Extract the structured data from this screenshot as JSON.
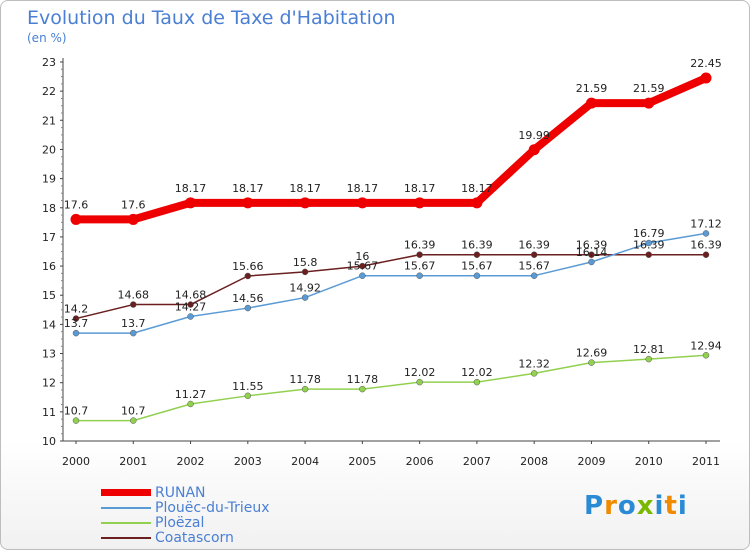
{
  "chart_data": {
    "type": "line",
    "title": "Evolution du Taux de Taxe d'Habitation",
    "unit": "(en %)",
    "x": [
      "2000",
      "2001",
      "2002",
      "2003",
      "2004",
      "2005",
      "2006",
      "2007",
      "2008",
      "2009",
      "2010",
      "2011"
    ],
    "ylim": [
      10,
      23
    ],
    "yticks": [
      "10",
      "11",
      "12",
      "13",
      "14",
      "15",
      "16",
      "17",
      "18",
      "19",
      "20",
      "21",
      "22",
      "23"
    ],
    "grid": false,
    "legend_position": "bottom-left",
    "series": [
      {
        "name": "Coatascorn",
        "color": "#6b1f1f",
        "values": [
          14.2,
          14.68,
          14.68,
          15.66,
          15.8,
          16,
          16.39,
          16.39,
          16.39,
          16.39,
          16.39,
          16.39
        ],
        "labels": [
          "14.2",
          "14.68",
          "14.68",
          "15.66",
          "15.8",
          "16",
          "16.39",
          "16.39",
          "16.39",
          "16.39",
          "16.39",
          "16.39"
        ]
      },
      {
        "name": "Plouëc-du-Trieux",
        "color": "#5b9bd5",
        "values": [
          13.7,
          13.7,
          14.27,
          14.56,
          14.92,
          15.67,
          15.67,
          15.67,
          15.67,
          16.14,
          16.79,
          17.12
        ],
        "labels": [
          "13.7",
          "13.7",
          "14.27",
          "14.56",
          "14.92",
          "15.67",
          "15.67",
          "15.67",
          "15.67",
          "16.14",
          "16.79",
          "17.12"
        ]
      },
      {
        "name": "Ploëzal",
        "color": "#92d050",
        "values": [
          10.7,
          10.7,
          11.27,
          11.55,
          11.78,
          11.78,
          12.02,
          12.02,
          12.32,
          12.69,
          12.81,
          12.94
        ],
        "labels": [
          "10.7",
          "10.7",
          "11.27",
          "11.55",
          "11.78",
          "11.78",
          "12.02",
          "12.02",
          "12.32",
          "12.69",
          "12.81",
          "12.94"
        ]
      },
      {
        "name": "RUNAN",
        "color": "#ee0000",
        "values": [
          17.6,
          17.6,
          18.17,
          18.17,
          18.17,
          18.17,
          18.17,
          18.17,
          19.99,
          21.59,
          21.59,
          22.45
        ],
        "labels": [
          "17.6",
          "17.6",
          "18.17",
          "18.17",
          "18.17",
          "18.17",
          "18.17",
          "18.17",
          "19.99",
          "21.59",
          "21.59",
          "22.45"
        ]
      }
    ]
  },
  "legend": [
    {
      "name": "RUNAN",
      "color": "#ee0000",
      "thick": true
    },
    {
      "name": "Plouëc-du-Trieux",
      "color": "#5b9bd5",
      "thick": false
    },
    {
      "name": "Ploëzal",
      "color": "#92d050",
      "thick": false
    },
    {
      "name": "Coatascorn",
      "color": "#6b1f1f",
      "thick": false
    }
  ],
  "logo": {
    "text": "Proxiti",
    "colors": [
      "#2a8ad4",
      "#f08a00",
      "#2a8ad4",
      "#7ab800",
      "#2a8ad4",
      "#f08a00",
      "#2a8ad4"
    ]
  }
}
